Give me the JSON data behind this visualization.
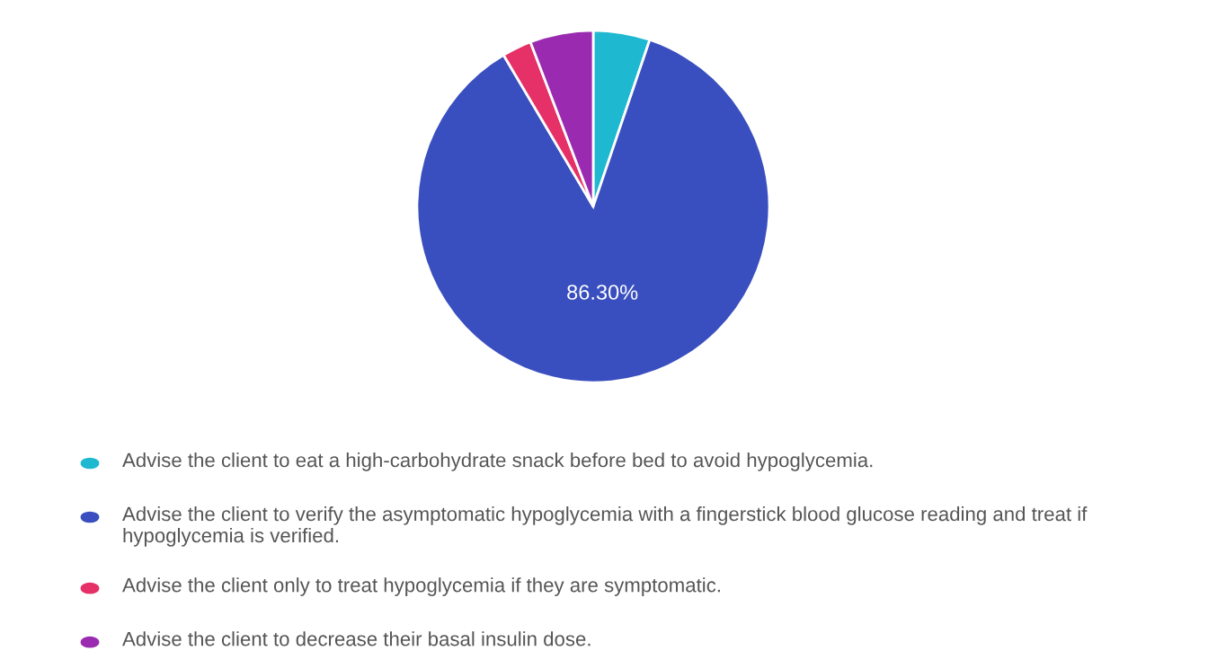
{
  "chart_data": {
    "type": "pie",
    "categories": [
      "Advise the client to eat a high-carbohydrate snack before bed to avoid hypoglycemia.",
      "Advise the client to verify the asymptomatic hypoglycemia with a fingerstick blood glucose reading and treat if hypoglycemia is verified.",
      "Advise the client only to treat hypoglycemia if they are symptomatic.",
      "Advise the client to decrease their basal insulin dose."
    ],
    "values": [
      5.2,
      86.3,
      2.7,
      5.8
    ],
    "colors": [
      "#1fb8d1",
      "#3a4fbf",
      "#e53068",
      "#9a2bb0"
    ],
    "value_labels": [
      null,
      "86.30%",
      null,
      null
    ],
    "legend": "bottom"
  }
}
